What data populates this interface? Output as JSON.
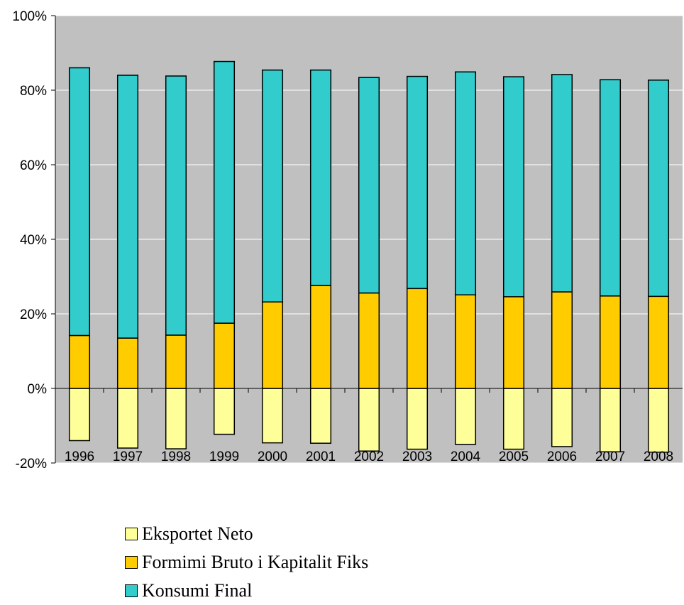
{
  "chart_data": {
    "type": "bar",
    "stacked": true,
    "categories": [
      "1996",
      "1997",
      "1998",
      "1999",
      "2000",
      "2001",
      "2002",
      "2003",
      "2004",
      "2005",
      "2006",
      "2007",
      "2008"
    ],
    "series": [
      {
        "name": "Eksportet Neto",
        "color": "#ffff99",
        "values": [
          -14,
          -16,
          -16.2,
          -12.3,
          -14.6,
          -14.7,
          -16.8,
          -16.3,
          -15,
          -16.3,
          -15.6,
          -17,
          -17.1
        ]
      },
      {
        "name": "Formimi Bruto i Kapitalit Fiks",
        "color": "#ffcc00",
        "values": [
          14.2,
          13.5,
          14.3,
          17.5,
          23.2,
          27.6,
          25.6,
          26.8,
          25.1,
          24.6,
          25.9,
          24.8,
          24.7
        ]
      },
      {
        "name": "Konsumi Final",
        "color": "#33cccc",
        "values": [
          71.8,
          70.5,
          69.5,
          70.2,
          62.2,
          57.8,
          57.8,
          56.9,
          59.8,
          59,
          58.3,
          58,
          58
        ]
      }
    ],
    "ylim": [
      -20,
      100
    ],
    "yticks": [
      -20,
      0,
      20,
      40,
      60,
      80,
      100
    ],
    "ytick_labels": [
      "-20%",
      "0%",
      "20%",
      "40%",
      "60%",
      "80%",
      "100%"
    ],
    "grid": true,
    "plot_background": "#c0c0c0",
    "legend_position": "bottom"
  }
}
